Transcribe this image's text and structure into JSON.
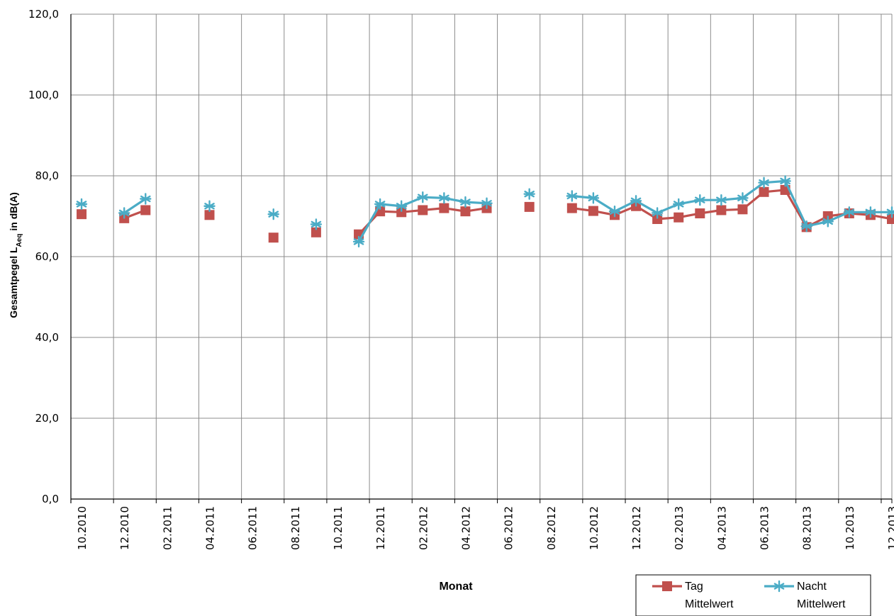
{
  "chart_data": {
    "type": "line",
    "xlabel": "Monat",
    "ylabel_main": "Gesamtpegel L",
    "ylabel_sub": "Aeq",
    "ylabel_tail": " in dB(A)",
    "ylim": [
      0,
      120
    ],
    "yticks": [
      "0,0",
      "20,0",
      "40,0",
      "60,0",
      "80,0",
      "100,0",
      "120,0"
    ],
    "categories": [
      "10.2010",
      "11.2010",
      "12.2010",
      "01.2011",
      "02.2011",
      "03.2011",
      "04.2011",
      "05.2011",
      "06.2011",
      "07.2011",
      "08.2011",
      "09.2011",
      "10.2011",
      "11.2011",
      "12.2011",
      "01.2012",
      "02.2012",
      "03.2012",
      "04.2012",
      "05.2012",
      "06.2012",
      "07.2012",
      "08.2012",
      "09.2012",
      "10.2012",
      "11.2012",
      "12.2012",
      "01.2013",
      "02.2013",
      "03.2013",
      "04.2013",
      "05.2013",
      "06.2013",
      "07.2013",
      "08.2013",
      "09.2013",
      "10.2013",
      "11.2013",
      "12.2013"
    ],
    "xtick_labels": [
      "10.2010",
      "12.2010",
      "02.2011",
      "04.2011",
      "06.2011",
      "08.2011",
      "10.2011",
      "12.2011",
      "02.2012",
      "04.2012",
      "06.2012",
      "08.2012",
      "10.2012",
      "12.2012",
      "02.2013",
      "04.2013",
      "06.2013",
      "08.2013",
      "10.2013",
      "12.2013"
    ],
    "grid": true,
    "legend_position": "bottom-right",
    "series": [
      {
        "name": "Tag Mittelwert",
        "legend_line1": "Tag",
        "legend_line2": "Mittelwert",
        "color": "#C0504D",
        "marker": "square",
        "values": [
          70.5,
          null,
          69.5,
          71.5,
          null,
          null,
          70.3,
          null,
          null,
          64.7,
          null,
          66.0,
          null,
          65.5,
          71.2,
          71.0,
          71.5,
          72.0,
          71.2,
          72.0,
          null,
          72.3,
          null,
          72.0,
          71.3,
          70.3,
          72.5,
          69.3,
          69.7,
          70.7,
          71.5,
          71.7,
          76.0,
          76.5,
          67.3,
          70.0,
          70.7,
          70.3,
          69.3
        ]
      },
      {
        "name": "Nacht Mittelwert",
        "legend_line1": "Nacht",
        "legend_line2": "Mittelwert",
        "color": "#4BACC6",
        "marker": "asterisk",
        "values": [
          73.0,
          null,
          70.8,
          74.3,
          null,
          null,
          72.5,
          null,
          null,
          70.5,
          null,
          68.0,
          null,
          63.7,
          73.0,
          72.5,
          74.7,
          74.5,
          73.5,
          73.2,
          null,
          75.5,
          null,
          75.0,
          74.5,
          71.2,
          73.8,
          70.8,
          73.0,
          74.0,
          74.0,
          74.5,
          78.3,
          78.7,
          67.5,
          68.7,
          71.0,
          71.0,
          71.0
        ]
      }
    ]
  }
}
